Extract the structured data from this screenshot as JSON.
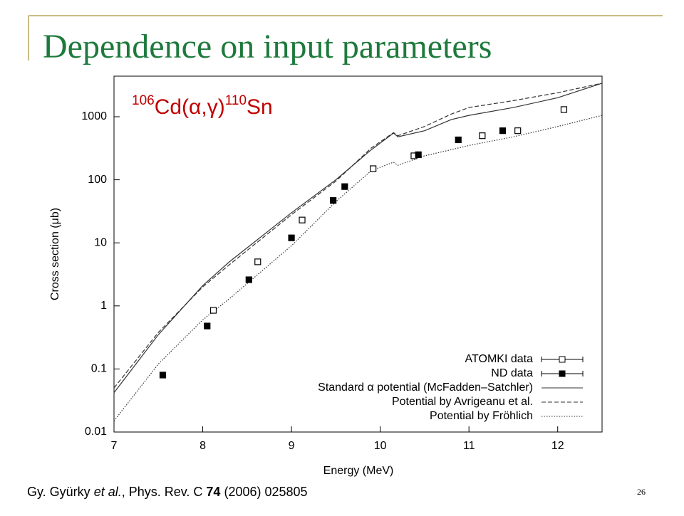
{
  "slide": {
    "title": "Dependence on input parameters",
    "citation": {
      "authors": "Gy. Gyürky ",
      "etal": "et al.",
      "journal": ", Phys. Rev. C ",
      "volume": "74",
      "rest": " (2006) 025805"
    },
    "page_number": "26"
  },
  "chart_data": {
    "type": "scatter-line",
    "annotation": {
      "mass_in": "106",
      "reaction": "Cd(α,γ)",
      "mass_out": "110",
      "product": "Sn"
    },
    "x_label": "Energy (MeV)",
    "y_label": "Cross section (μb)",
    "xlim": [
      7,
      12.5
    ],
    "xticks": [
      7,
      8,
      9,
      10,
      11,
      12
    ],
    "ylim": [
      0.01,
      4400
    ],
    "yticks": [
      0.01,
      0.1,
      1,
      10,
      100,
      1000
    ],
    "log_y": true,
    "legend": "lower right",
    "points": [
      {
        "name": "ATOMKI data",
        "marker": "open-square",
        "color": "#000000",
        "x": [
          8.12,
          8.62,
          9.12,
          9.92,
          10.38,
          11.15,
          11.55,
          12.07
        ],
        "values": [
          0.85,
          5,
          23,
          150,
          240,
          500,
          600,
          1300
        ]
      },
      {
        "name": "ND data",
        "marker": "filled-square",
        "color": "#000000",
        "x": [
          7.55,
          8.05,
          8.52,
          9.0,
          9.47,
          9.6,
          10.43,
          10.88,
          11.38
        ],
        "values": [
          0.08,
          0.48,
          2.6,
          12,
          47,
          78,
          250,
          430,
          600
        ]
      }
    ],
    "series": [
      {
        "name": "Standard α potential (McFadden–Satchler)",
        "style": "solid",
        "color": "#333333",
        "x": [
          7,
          7.5,
          8,
          8.3,
          9,
          9.5,
          9.9,
          10.15,
          10.2,
          10.5,
          10.8,
          11,
          11.5,
          12,
          12.5
        ],
        "values": [
          0.042,
          0.35,
          2.1,
          5,
          30,
          100,
          300,
          550,
          480,
          600,
          900,
          1050,
          1400,
          2000,
          3400
        ]
      },
      {
        "name": "Potential by Avrigeanu et al.",
        "style": "dashed",
        "color": "#333333",
        "x": [
          7,
          7.5,
          8,
          8.3,
          9,
          9.5,
          9.9,
          10.15,
          10.2,
          10.5,
          10.8,
          11,
          11.5,
          12,
          12.5
        ],
        "values": [
          0.05,
          0.38,
          2.0,
          4.5,
          28,
          95,
          320,
          560,
          500,
          700,
          1100,
          1400,
          1800,
          2400,
          3400
        ]
      },
      {
        "name": "Potential by Fröhlich",
        "style": "dotted",
        "color": "#333333",
        "x": [
          7,
          7.5,
          8,
          8.3,
          9,
          9.5,
          9.9,
          10.15,
          10.2,
          10.5,
          10.8,
          11,
          11.5,
          12,
          12.5
        ],
        "values": [
          0.015,
          0.12,
          0.6,
          1.3,
          9,
          45,
          140,
          190,
          170,
          240,
          300,
          350,
          480,
          700,
          1050
        ]
      }
    ]
  }
}
